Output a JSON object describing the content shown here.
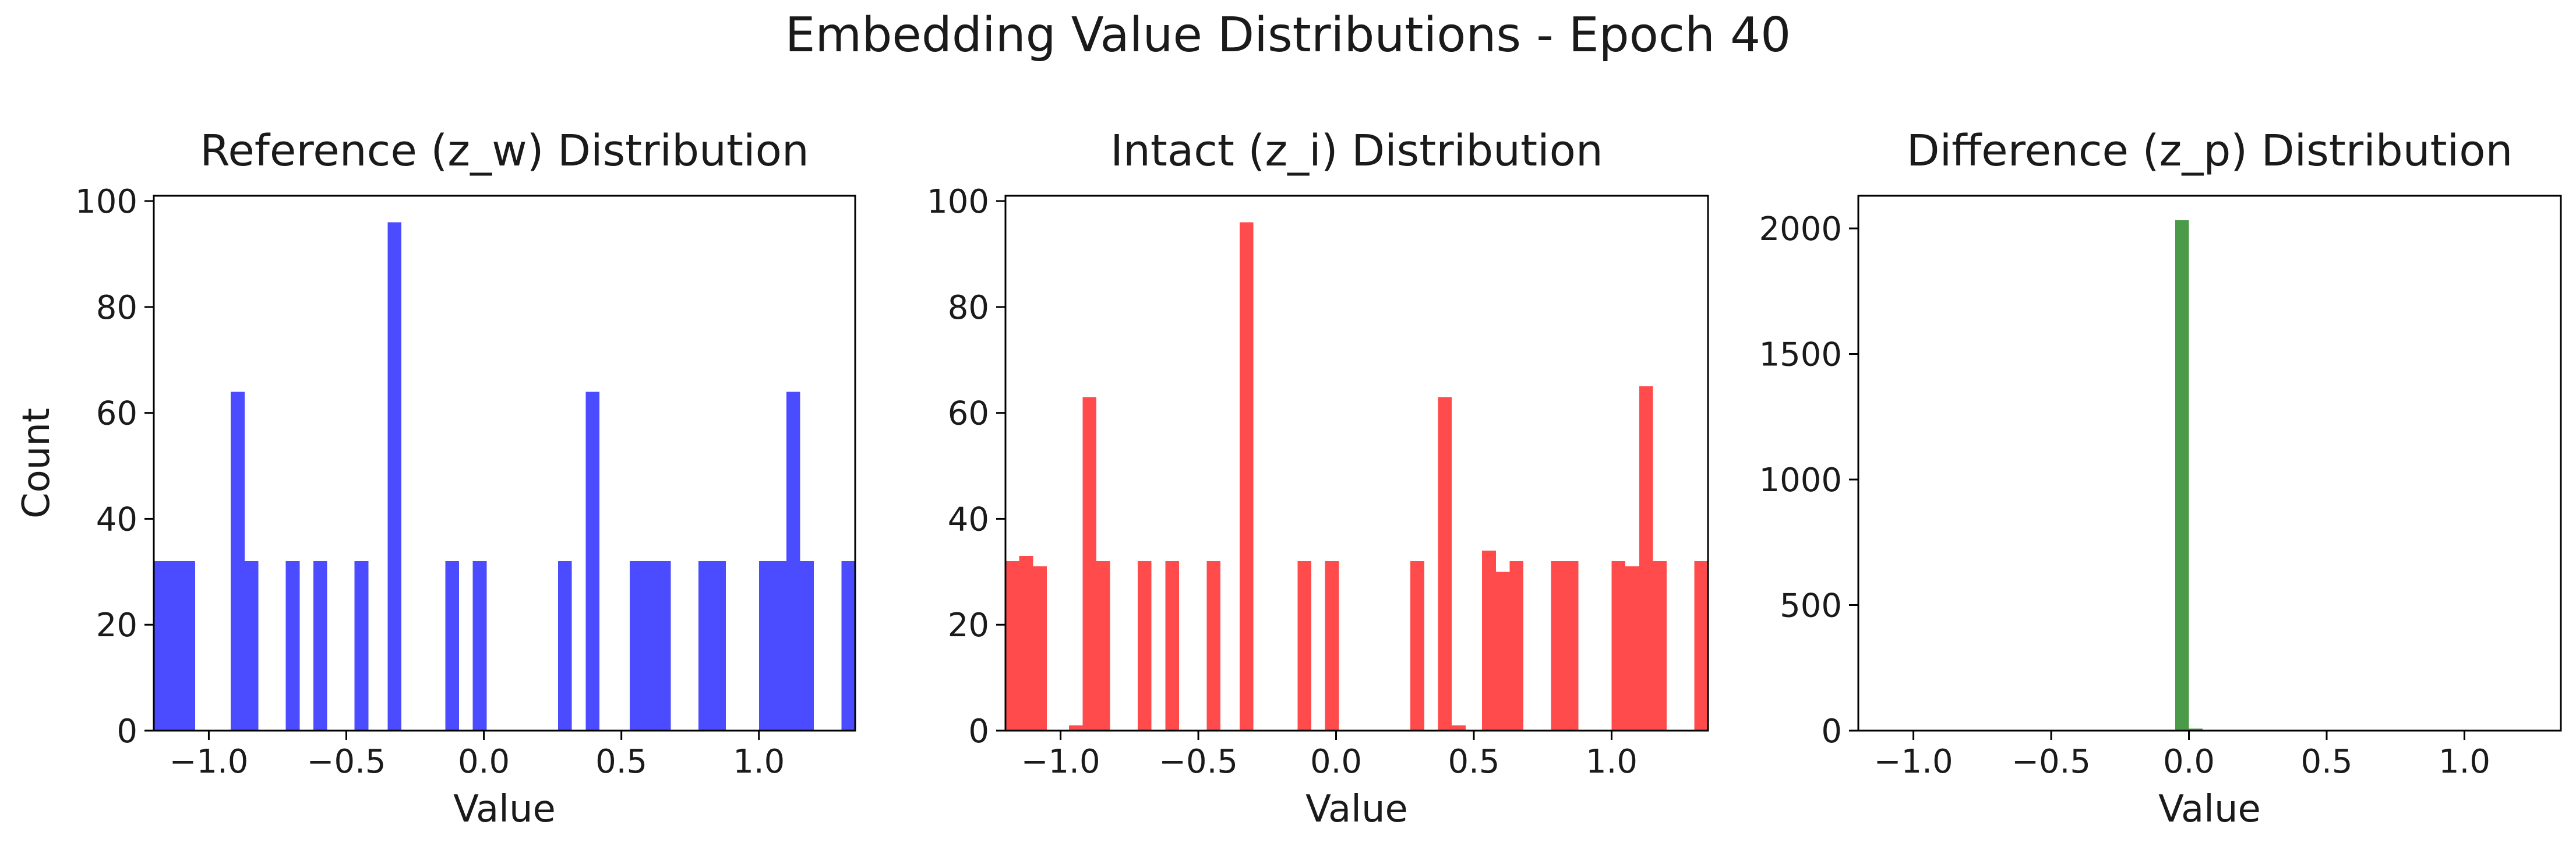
{
  "suptitle": "Embedding Value Distributions - Epoch 40",
  "chart_data": [
    {
      "type": "bar",
      "title": "Reference (z_w) Distribution",
      "xlabel": "Value",
      "ylabel": "Count",
      "color": "#4b4bff",
      "xlim": [
        -1.2,
        1.35
      ],
      "ylim": [
        0,
        101
      ],
      "xticks": [
        -1.0,
        -0.5,
        0.0,
        0.5,
        1.0
      ],
      "xtick_labels": [
        "−1.0",
        "−0.5",
        "0.0",
        "0.5",
        "1.0"
      ],
      "yticks": [
        0,
        20,
        40,
        60,
        80,
        100
      ],
      "ytick_labels": [
        "0",
        "20",
        "40",
        "60",
        "80",
        "100"
      ],
      "bins": [
        {
          "x0": -1.2,
          "x1": -1.05,
          "count": 32
        },
        {
          "x0": -0.92,
          "x1": -0.87,
          "count": 64
        },
        {
          "x0": -0.87,
          "x1": -0.82,
          "count": 32
        },
        {
          "x0": -0.72,
          "x1": -0.67,
          "count": 32
        },
        {
          "x0": -0.62,
          "x1": -0.57,
          "count": 32
        },
        {
          "x0": -0.47,
          "x1": -0.42,
          "count": 32
        },
        {
          "x0": -0.35,
          "x1": -0.3,
          "count": 96
        },
        {
          "x0": -0.14,
          "x1": -0.09,
          "count": 32
        },
        {
          "x0": -0.04,
          "x1": 0.01,
          "count": 32
        },
        {
          "x0": 0.27,
          "x1": 0.32,
          "count": 32
        },
        {
          "x0": 0.37,
          "x1": 0.42,
          "count": 64
        },
        {
          "x0": 0.53,
          "x1": 0.68,
          "count": 32
        },
        {
          "x0": 0.78,
          "x1": 0.88,
          "count": 32
        },
        {
          "x0": 1.0,
          "x1": 1.1,
          "count": 32
        },
        {
          "x0": 1.1,
          "x1": 1.15,
          "count": 64
        },
        {
          "x0": 1.15,
          "x1": 1.2,
          "count": 32
        },
        {
          "x0": 1.3,
          "x1": 1.35,
          "count": 32
        }
      ]
    },
    {
      "type": "bar",
      "title": "Intact (z_i) Distribution",
      "xlabel": "Value",
      "ylabel": "",
      "color": "#ff4b4b",
      "xlim": [
        -1.2,
        1.35
      ],
      "ylim": [
        0,
        101
      ],
      "xticks": [
        -1.0,
        -0.5,
        0.0,
        0.5,
        1.0
      ],
      "xtick_labels": [
        "−1.0",
        "−0.5",
        "0.0",
        "0.5",
        "1.0"
      ],
      "yticks": [
        0,
        20,
        40,
        60,
        80,
        100
      ],
      "ytick_labels": [
        "0",
        "20",
        "40",
        "60",
        "80",
        "100"
      ],
      "bins": [
        {
          "x0": -1.2,
          "x1": -1.15,
          "count": 32
        },
        {
          "x0": -1.15,
          "x1": -1.1,
          "count": 33
        },
        {
          "x0": -1.1,
          "x1": -1.05,
          "count": 31
        },
        {
          "x0": -0.97,
          "x1": -0.92,
          "count": 1
        },
        {
          "x0": -0.92,
          "x1": -0.87,
          "count": 63
        },
        {
          "x0": -0.87,
          "x1": -0.82,
          "count": 32
        },
        {
          "x0": -0.72,
          "x1": -0.67,
          "count": 32
        },
        {
          "x0": -0.62,
          "x1": -0.57,
          "count": 32
        },
        {
          "x0": -0.47,
          "x1": -0.42,
          "count": 32
        },
        {
          "x0": -0.35,
          "x1": -0.3,
          "count": 96
        },
        {
          "x0": -0.14,
          "x1": -0.09,
          "count": 32
        },
        {
          "x0": -0.04,
          "x1": 0.01,
          "count": 32
        },
        {
          "x0": 0.27,
          "x1": 0.32,
          "count": 32
        },
        {
          "x0": 0.37,
          "x1": 0.42,
          "count": 63
        },
        {
          "x0": 0.42,
          "x1": 0.47,
          "count": 1
        },
        {
          "x0": 0.53,
          "x1": 0.58,
          "count": 34
        },
        {
          "x0": 0.58,
          "x1": 0.63,
          "count": 30
        },
        {
          "x0": 0.63,
          "x1": 0.68,
          "count": 32
        },
        {
          "x0": 0.78,
          "x1": 0.88,
          "count": 32
        },
        {
          "x0": 1.0,
          "x1": 1.05,
          "count": 32
        },
        {
          "x0": 1.05,
          "x1": 1.1,
          "count": 31
        },
        {
          "x0": 1.1,
          "x1": 1.15,
          "count": 65
        },
        {
          "x0": 1.15,
          "x1": 1.2,
          "count": 32
        },
        {
          "x0": 1.3,
          "x1": 1.35,
          "count": 32
        }
      ]
    },
    {
      "type": "bar",
      "title": "Difference (z_p) Distribution",
      "xlabel": "Value",
      "ylabel": "",
      "color": "#4a9a4a",
      "xlim": [
        -1.2,
        1.35
      ],
      "ylim": [
        0,
        2130
      ],
      "xticks": [
        -1.0,
        -0.5,
        0.0,
        0.5,
        1.0
      ],
      "xtick_labels": [
        "−1.0",
        "−0.5",
        "0.0",
        "0.5",
        "1.0"
      ],
      "yticks": [
        0,
        500,
        1000,
        1500,
        2000
      ],
      "ytick_labels": [
        "0",
        "500",
        "1000",
        "1500",
        "2000"
      ],
      "bins": [
        {
          "x0": -0.1,
          "x1": -0.05,
          "count": 4
        },
        {
          "x0": -0.05,
          "x1": 0.0,
          "count": 2032
        },
        {
          "x0": 0.0,
          "x1": 0.05,
          "count": 8
        }
      ]
    }
  ]
}
